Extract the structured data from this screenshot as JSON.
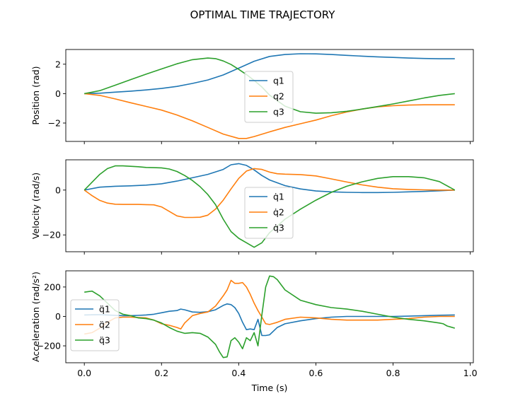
{
  "title": "OPTIMAL TIME TRAJECTORY",
  "colors": {
    "q1": "#1f77b4",
    "q2": "#ff7f0e",
    "q3": "#2ca02c"
  },
  "chart_data": [
    {
      "type": "line",
      "ylabel": "Position (rad)",
      "xlim": [
        -0.048,
        1.008
      ],
      "ylim": [
        -3.25,
        3.0
      ],
      "yticks": [
        2,
        0,
        -2
      ],
      "ytick_labels": [
        "2",
        "0",
        "−2"
      ],
      "xticks": [
        0.0,
        0.2,
        0.4,
        0.6,
        0.8,
        1.0
      ],
      "grid": false,
      "legend": "center",
      "series": [
        {
          "name": "q1",
          "x": [
            0,
            0.04,
            0.08,
            0.12,
            0.16,
            0.2,
            0.24,
            0.28,
            0.32,
            0.36,
            0.4,
            0.44,
            0.48,
            0.52,
            0.56,
            0.6,
            0.64,
            0.68,
            0.72,
            0.76,
            0.8,
            0.84,
            0.88,
            0.92,
            0.96
          ],
          "y": [
            0,
            0.03,
            0.1,
            0.17,
            0.25,
            0.35,
            0.49,
            0.69,
            0.93,
            1.27,
            1.73,
            2.2,
            2.53,
            2.66,
            2.71,
            2.7,
            2.66,
            2.6,
            2.55,
            2.5,
            2.46,
            2.42,
            2.39,
            2.37,
            2.37
          ]
        },
        {
          "name": "q2",
          "x": [
            0,
            0.04,
            0.08,
            0.12,
            0.16,
            0.2,
            0.24,
            0.28,
            0.32,
            0.36,
            0.4,
            0.42,
            0.44,
            0.48,
            0.52,
            0.56,
            0.6,
            0.64,
            0.68,
            0.72,
            0.76,
            0.8,
            0.84,
            0.88,
            0.92,
            0.96
          ],
          "y": [
            0,
            -0.12,
            -0.36,
            -0.62,
            -0.87,
            -1.12,
            -1.45,
            -1.85,
            -2.3,
            -2.75,
            -3.05,
            -3.05,
            -2.92,
            -2.6,
            -2.3,
            -2.05,
            -1.8,
            -1.5,
            -1.25,
            -1.05,
            -0.9,
            -0.82,
            -0.78,
            -0.76,
            -0.76,
            -0.76
          ]
        },
        {
          "name": "q3",
          "x": [
            0,
            0.04,
            0.08,
            0.12,
            0.16,
            0.2,
            0.24,
            0.28,
            0.32,
            0.34,
            0.36,
            0.38,
            0.4,
            0.42,
            0.44,
            0.46,
            0.48,
            0.52,
            0.56,
            0.6,
            0.64,
            0.68,
            0.72,
            0.76,
            0.8,
            0.84,
            0.88,
            0.92,
            0.96
          ],
          "y": [
            0,
            0.2,
            0.57,
            0.95,
            1.32,
            1.68,
            2.03,
            2.31,
            2.42,
            2.38,
            2.22,
            1.98,
            1.65,
            1.3,
            0.9,
            0.45,
            -0.1,
            -0.85,
            -1.23,
            -1.33,
            -1.3,
            -1.2,
            -1.05,
            -0.88,
            -0.7,
            -0.5,
            -0.3,
            -0.12,
            0
          ]
        }
      ]
    },
    {
      "type": "line",
      "ylabel": "Velocity (rad/s)",
      "xlim": [
        -0.048,
        1.008
      ],
      "ylim": [
        -27.5,
        13.5
      ],
      "yticks": [
        0,
        -20
      ],
      "ytick_labels": [
        "0",
        "−20"
      ],
      "xticks": [
        0.0,
        0.2,
        0.4,
        0.6,
        0.8,
        1.0
      ],
      "grid": false,
      "legend": "center",
      "series": [
        {
          "name": "q̇1",
          "x": [
            0,
            0.04,
            0.08,
            0.12,
            0.16,
            0.2,
            0.24,
            0.28,
            0.32,
            0.36,
            0.38,
            0.4,
            0.42,
            0.44,
            0.46,
            0.48,
            0.52,
            0.56,
            0.6,
            0.64,
            0.68,
            0.72,
            0.76,
            0.8,
            0.84,
            0.88,
            0.92,
            0.96
          ],
          "y": [
            0,
            1.3,
            1.7,
            1.9,
            2.2,
            2.8,
            4.0,
            5.5,
            7.0,
            9.2,
            11.3,
            11.8,
            11.0,
            9.0,
            6.5,
            4.5,
            2.0,
            0.5,
            -0.4,
            -0.8,
            -1.0,
            -1.1,
            -1.1,
            -1.0,
            -0.8,
            -0.6,
            -0.3,
            0
          ]
        },
        {
          "name": "q̇2",
          "x": [
            0,
            0.02,
            0.04,
            0.06,
            0.08,
            0.1,
            0.12,
            0.14,
            0.16,
            0.18,
            0.2,
            0.22,
            0.24,
            0.26,
            0.28,
            0.3,
            0.32,
            0.34,
            0.36,
            0.38,
            0.4,
            0.42,
            0.44,
            0.46,
            0.48,
            0.5,
            0.52,
            0.56,
            0.6,
            0.64,
            0.68,
            0.72,
            0.76,
            0.8,
            0.84,
            0.88,
            0.92,
            0.96
          ],
          "y": [
            0,
            -2.5,
            -4.6,
            -5.8,
            -6.3,
            -6.4,
            -6.4,
            -6.4,
            -6.5,
            -6.6,
            -7.5,
            -9.5,
            -11.5,
            -12.2,
            -12.2,
            -12.1,
            -11.2,
            -8.5,
            -4.5,
            0.5,
            5.2,
            8.5,
            9.6,
            9.2,
            8.0,
            7.3,
            7.1,
            6.9,
            6.3,
            5.0,
            3.6,
            2.3,
            1.3,
            0.6,
            0.3,
            0.1,
            0,
            0
          ]
        },
        {
          "name": "q̇3",
          "x": [
            0,
            0.02,
            0.04,
            0.06,
            0.08,
            0.1,
            0.12,
            0.14,
            0.16,
            0.18,
            0.2,
            0.22,
            0.24,
            0.26,
            0.28,
            0.3,
            0.32,
            0.34,
            0.36,
            0.38,
            0.4,
            0.42,
            0.44,
            0.46,
            0.48,
            0.52,
            0.56,
            0.6,
            0.64,
            0.68,
            0.72,
            0.76,
            0.8,
            0.84,
            0.88,
            0.92,
            0.96
          ],
          "y": [
            0,
            3.5,
            7.0,
            9.6,
            10.8,
            10.8,
            10.6,
            10.4,
            10.1,
            10.0,
            9.9,
            9.4,
            8.3,
            6.5,
            4.3,
            1.5,
            -2.0,
            -6.5,
            -13.0,
            -18.5,
            -21.5,
            -23.5,
            -25.5,
            -23.5,
            -19.0,
            -13.0,
            -8.5,
            -4.5,
            -1.0,
            1.7,
            3.7,
            5.2,
            6.0,
            6.0,
            5.5,
            3.8,
            0
          ]
        }
      ]
    },
    {
      "type": "line",
      "xlabel": "Time (s)",
      "ylabel": "Acceleration (rad/s²)",
      "xlim": [
        -0.048,
        1.008
      ],
      "ylim": [
        -315,
        310
      ],
      "yticks": [
        200,
        0,
        -200
      ],
      "ytick_labels": [
        "200",
        "0",
        "−200"
      ],
      "xticks": [
        0.0,
        0.2,
        0.4,
        0.6,
        0.8,
        1.0
      ],
      "xtick_labels": [
        "0.0",
        "0.2",
        "0.4",
        "0.6",
        "0.8",
        "1.0"
      ],
      "grid": false,
      "legend": "center-left",
      "series": [
        {
          "name": "q̈1",
          "x": [
            0,
            0.02,
            0.04,
            0.06,
            0.08,
            0.1,
            0.12,
            0.14,
            0.16,
            0.18,
            0.2,
            0.22,
            0.24,
            0.25,
            0.26,
            0.28,
            0.3,
            0.32,
            0.34,
            0.36,
            0.37,
            0.38,
            0.39,
            0.4,
            0.41,
            0.42,
            0.43,
            0.44,
            0.45,
            0.46,
            0.47,
            0.48,
            0.5,
            0.52,
            0.56,
            0.6,
            0.64,
            0.68,
            0.72,
            0.76,
            0.8,
            0.84,
            0.88,
            0.92,
            0.96
          ],
          "y": [
            10,
            11,
            12,
            10,
            7,
            5,
            5,
            7,
            10,
            15,
            25,
            35,
            40,
            50,
            45,
            30,
            28,
            32,
            45,
            75,
            85,
            80,
            60,
            20,
            -40,
            -90,
            -85,
            -90,
            -20,
            -130,
            -130,
            -125,
            -75,
            -50,
            -30,
            -15,
            -5,
            0,
            0,
            0,
            0,
            2,
            5,
            8,
            10
          ]
        },
        {
          "name": "q̈2",
          "x": [
            0,
            0.02,
            0.04,
            0.06,
            0.08,
            0.1,
            0.12,
            0.14,
            0.16,
            0.18,
            0.2,
            0.22,
            0.24,
            0.25,
            0.26,
            0.28,
            0.3,
            0.32,
            0.34,
            0.36,
            0.37,
            0.38,
            0.39,
            0.4,
            0.41,
            0.42,
            0.43,
            0.44,
            0.45,
            0.46,
            0.47,
            0.48,
            0.5,
            0.52,
            0.56,
            0.6,
            0.64,
            0.68,
            0.72,
            0.76,
            0.8,
            0.84,
            0.88,
            0.92,
            0.96
          ],
          "y": [
            -120,
            -110,
            -80,
            -40,
            -10,
            -5,
            -5,
            -8,
            -10,
            -25,
            -50,
            -60,
            -75,
            -85,
            -45,
            5,
            20,
            30,
            70,
            140,
            180,
            245,
            225,
            225,
            230,
            200,
            150,
            90,
            40,
            -5,
            -50,
            -55,
            -40,
            -20,
            -5,
            -10,
            -20,
            -25,
            -25,
            -25,
            -20,
            -15,
            -5,
            0,
            0
          ]
        },
        {
          "name": "q̈3",
          "x": [
            0,
            0.02,
            0.04,
            0.06,
            0.08,
            0.1,
            0.12,
            0.14,
            0.16,
            0.18,
            0.2,
            0.22,
            0.24,
            0.26,
            0.28,
            0.3,
            0.32,
            0.34,
            0.35,
            0.36,
            0.37,
            0.38,
            0.39,
            0.4,
            0.41,
            0.42,
            0.43,
            0.44,
            0.45,
            0.46,
            0.47,
            0.48,
            0.49,
            0.5,
            0.52,
            0.56,
            0.6,
            0.64,
            0.68,
            0.72,
            0.76,
            0.8,
            0.84,
            0.88,
            0.92,
            0.93,
            0.94,
            0.96
          ],
          "y": [
            165,
            172,
            140,
            90,
            40,
            15,
            5,
            -10,
            -15,
            -25,
            -45,
            -75,
            -100,
            -115,
            -110,
            -115,
            -140,
            -190,
            -240,
            -280,
            -275,
            -165,
            -145,
            -175,
            -220,
            -145,
            -165,
            -110,
            -200,
            10,
            200,
            275,
            270,
            250,
            180,
            110,
            80,
            60,
            50,
            35,
            15,
            -5,
            -20,
            -30,
            -45,
            -50,
            -65,
            -80
          ]
        }
      ]
    }
  ]
}
